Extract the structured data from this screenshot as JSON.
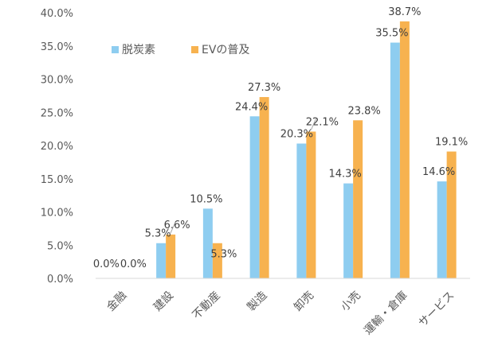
{
  "chart_data": {
    "type": "bar",
    "title": "",
    "xlabel": "",
    "ylabel": "",
    "ylim": [
      0,
      40
    ],
    "yticks": [
      "0.0%",
      "5.0%",
      "10.0%",
      "15.0%",
      "20.0%",
      "25.0%",
      "30.0%",
      "35.0%",
      "40.0%"
    ],
    "grid": false,
    "legend_position": "top-left",
    "categories": [
      "金融",
      "建設",
      "不動産",
      "製造",
      "卸売",
      "小売",
      "運輸・倉庫",
      "サービス"
    ],
    "series": [
      {
        "name": "脱炭素",
        "color": "#8ecdf0",
        "values": [
          0.0,
          5.3,
          10.5,
          24.4,
          20.3,
          14.3,
          35.5,
          14.6
        ],
        "labels": [
          "0.0%",
          "5.3%",
          "10.5%",
          "24.4%",
          "20.3%",
          "14.3%",
          "35.5%",
          "14.6%"
        ]
      },
      {
        "name": "EVの普及",
        "color": "#f7b24f",
        "values": [
          0.0,
          6.6,
          5.3,
          27.3,
          22.1,
          23.8,
          38.7,
          19.1
        ],
        "labels": [
          "0.0%",
          "6.6%",
          "5.3%",
          "27.3%",
          "22.1%",
          "23.8%",
          "38.7%",
          "19.1%"
        ]
      }
    ]
  }
}
